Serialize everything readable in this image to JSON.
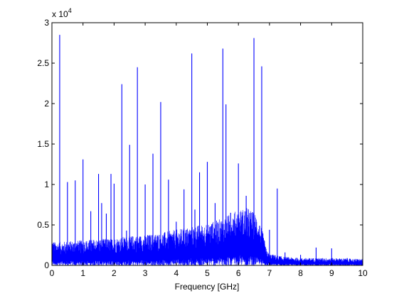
{
  "chart_data": {
    "type": "line",
    "title": "",
    "xlabel": "Frequency [GHz]",
    "ylabel": "",
    "xlim": [
      0,
      10
    ],
    "ylim": [
      0,
      30000
    ],
    "y_exponent_label": "x 10",
    "y_exponent_power": "4",
    "xticks": [
      0,
      1,
      2,
      3,
      4,
      5,
      6,
      7,
      8,
      9,
      10
    ],
    "xtick_labels": [
      "0",
      "1",
      "2",
      "3",
      "4",
      "5",
      "6",
      "7",
      "8",
      "9",
      "10"
    ],
    "yticks": [
      0,
      5000,
      10000,
      15000,
      20000,
      25000,
      30000
    ],
    "ytick_labels": [
      "0",
      "0.5",
      "1",
      "1.5",
      "2",
      "2.5",
      "3"
    ],
    "grid": false,
    "line_color": "#0000ff",
    "series": [
      {
        "noise_floor": [
          [
            0,
            2500
          ],
          [
            0.1,
            2200
          ],
          [
            0.5,
            2300
          ],
          [
            1.0,
            2400
          ],
          [
            1.5,
            2500
          ],
          [
            2.0,
            2600
          ],
          [
            2.5,
            2800
          ],
          [
            3.0,
            2900
          ],
          [
            3.5,
            3100
          ],
          [
            4.0,
            3400
          ],
          [
            4.5,
            3700
          ],
          [
            5.0,
            4000
          ],
          [
            5.5,
            4500
          ],
          [
            5.8,
            5000
          ],
          [
            6.0,
            5300
          ],
          [
            6.3,
            5500
          ],
          [
            6.6,
            4800
          ],
          [
            6.8,
            3000
          ],
          [
            6.9,
            1500
          ],
          [
            7.0,
            1100
          ],
          [
            7.5,
            800
          ],
          [
            8.0,
            700
          ],
          [
            9.0,
            700
          ],
          [
            10.0,
            600
          ]
        ],
        "peaks": [
          [
            0.25,
            28500
          ],
          [
            0.5,
            10300
          ],
          [
            0.75,
            10500
          ],
          [
            1.0,
            13100
          ],
          [
            1.25,
            6700
          ],
          [
            1.5,
            11300
          ],
          [
            1.6,
            7700
          ],
          [
            1.75,
            6400
          ],
          [
            1.9,
            11300
          ],
          [
            2.0,
            10100
          ],
          [
            2.25,
            22400
          ],
          [
            2.4,
            4300
          ],
          [
            2.5,
            14900
          ],
          [
            2.75,
            24500
          ],
          [
            3.0,
            10000
          ],
          [
            3.25,
            13800
          ],
          [
            3.5,
            20200
          ],
          [
            3.6,
            3500
          ],
          [
            3.75,
            10600
          ],
          [
            4.0,
            5400
          ],
          [
            4.25,
            9400
          ],
          [
            4.5,
            26200
          ],
          [
            4.6,
            6900
          ],
          [
            4.75,
            11500
          ],
          [
            5.0,
            12800
          ],
          [
            5.25,
            7700
          ],
          [
            5.5,
            26800
          ],
          [
            5.6,
            19900
          ],
          [
            5.75,
            6500
          ],
          [
            6.0,
            12600
          ],
          [
            6.25,
            8600
          ],
          [
            6.5,
            28100
          ],
          [
            6.75,
            24600
          ],
          [
            7.0,
            4400
          ],
          [
            7.25,
            9500
          ],
          [
            7.5,
            1600
          ],
          [
            8.0,
            1300
          ],
          [
            8.5,
            2200
          ],
          [
            9.0,
            2100
          ],
          [
            9.5,
            900
          ]
        ]
      }
    ]
  }
}
